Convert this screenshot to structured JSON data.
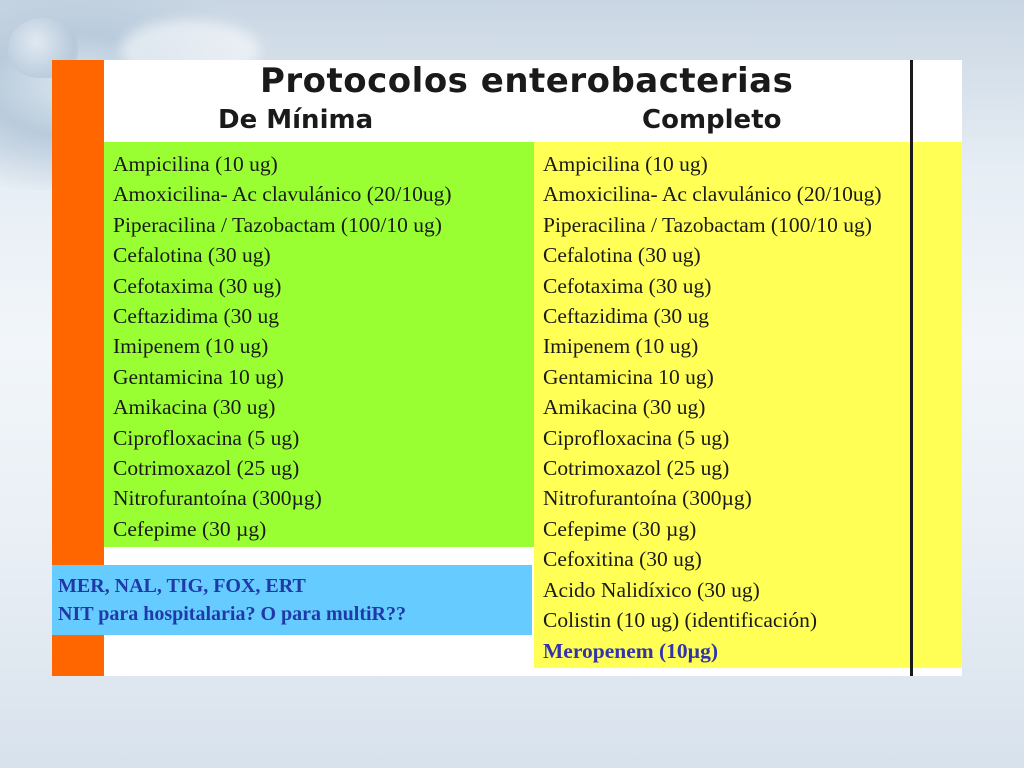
{
  "slide": {
    "title": "Protocolos enterobacterias",
    "columns": {
      "minima": {
        "heading": "De Mínima",
        "items": [
          "Ampicilina (10 ug)",
          "Amoxicilina- Ac clavulánico (20/10ug)",
          "Piperacilina / Tazobactam (100/10 ug)",
          "Cefalotina (30 ug)",
          "Cefotaxima (30 ug)",
          "Ceftazidima (30 ug",
          "Imipenem (10 ug)",
          "Gentamicina 10 ug)",
          "Amikacina (30 ug)",
          "Ciprofloxacina (5 ug)",
          "Cotrimoxazol (25 ug)",
          "Nitrofurantoína (300µg)",
          "Cefepime (30 µg)"
        ]
      },
      "completo": {
        "heading": "Completo",
        "items": [
          "Ampicilina (10 ug)",
          "Amoxicilina- Ac clavulánico (20/10ug)",
          "Piperacilina / Tazobactam (100/10 ug)",
          "Cefalotina (30 ug)",
          "Cefotaxima (30 ug)",
          "Ceftazidima (30 ug",
          "Imipenem (10 ug)",
          "Gentamicina 10 ug)",
          "Amikacina (30 ug)",
          "Ciprofloxacina (5 ug)",
          "Cotrimoxazol (25 ug)",
          "Nitrofurantoína (300µg)",
          "Cefepime (30 µg)",
          "Cefoxitina (30 ug)",
          "Acido Nalidíxico (30 ug)",
          "Colistin (10 ug) (identificación)",
          "Meropenem (10µg)"
        ]
      }
    },
    "note": {
      "line1": "MER, NAL, TIG, FOX, ERT",
      "line2": "NIT para hospitalaria? O para multiR??"
    }
  },
  "colors": {
    "orange_bar": "#ff6600",
    "green_panel": "#99ff33",
    "yellow_panel": "#ffff55",
    "blue_note": "#66ccff",
    "note_text": "#1f3aa8",
    "highlight_text": "#3333aa"
  }
}
